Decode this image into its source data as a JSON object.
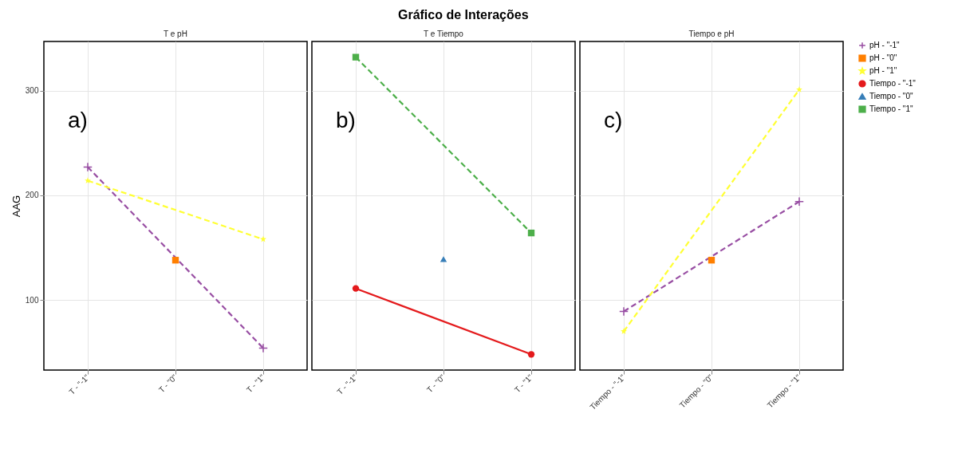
{
  "chart_data": [
    {
      "type": "line",
      "subtitle": "T e pH",
      "ylabel": "AAG",
      "categories": [
        "T - \"-1\"",
        "T - \"0\"",
        "T - \"1\""
      ],
      "ylim": [
        33,
        347
      ],
      "yticks": [
        100,
        200,
        300
      ],
      "grid": true,
      "legend": "right",
      "annotations": [
        "a)"
      ],
      "series": [
        {
          "name": "pH - \"-1\"",
          "color": "#984ea3",
          "marker": "cross",
          "line_style": "dashed",
          "values": [
            227,
            null,
            54
          ]
        },
        {
          "name": "pH - \"0\"",
          "color": "#ff7f00",
          "marker": "square",
          "values": [
            null,
            138,
            null
          ]
        },
        {
          "name": "pH - \"1\"",
          "color": "#ffff33",
          "marker": "star",
          "line_style": "dashed",
          "values": [
            214,
            null,
            158
          ]
        }
      ]
    },
    {
      "type": "line",
      "title": "Gráfico de Interações",
      "subtitle": "T e Tiempo",
      "categories": [
        "T - \"-1\"",
        "T - \"0\"",
        "T - \"1\""
      ],
      "ylim": [
        33,
        347
      ],
      "yticks": [
        100,
        200,
        300
      ],
      "grid": true,
      "tick_labels": "x",
      "legend": "right",
      "annotations": [
        "b)"
      ],
      "series": [
        {
          "name": "Tiempo - \"-1\"",
          "color": "#e41a1c",
          "marker": "circle",
          "line_style": "solid",
          "values": [
            111,
            null,
            48
          ]
        },
        {
          "name": "Tiempo - \"0\"",
          "color": "#377eb8",
          "marker": "triangle",
          "values": [
            null,
            139,
            null
          ]
        },
        {
          "name": "Tiempo - \"1\"",
          "color": "#4daf4a",
          "marker": "square",
          "line_style": "dashed",
          "values": [
            332,
            null,
            164
          ]
        }
      ]
    },
    {
      "type": "line",
      "subtitle": "Tiempo e pH",
      "categories": [
        "Tiempo - \"-1\"",
        "Tiempo - \"0\"",
        "Tiempo - \"1\""
      ],
      "ylim": [
        33,
        347
      ],
      "yticks": [
        100,
        200,
        300
      ],
      "grid": true,
      "tick_labels": "x",
      "legend": "right",
      "annotations": [
        "c)"
      ],
      "series": [
        {
          "name": "pH - \"-1\"",
          "color": "#984ea3",
          "marker": "cross",
          "line_style": "dashed",
          "values": [
            89,
            null,
            194
          ]
        },
        {
          "name": "pH - \"0\"",
          "color": "#ff7f00",
          "marker": "square",
          "values": [
            null,
            138,
            null
          ]
        },
        {
          "name": "pH - \"1\"",
          "color": "#ffff33",
          "marker": "star",
          "line_style": "dashed",
          "values": [
            70,
            null,
            301
          ]
        }
      ]
    }
  ]
}
